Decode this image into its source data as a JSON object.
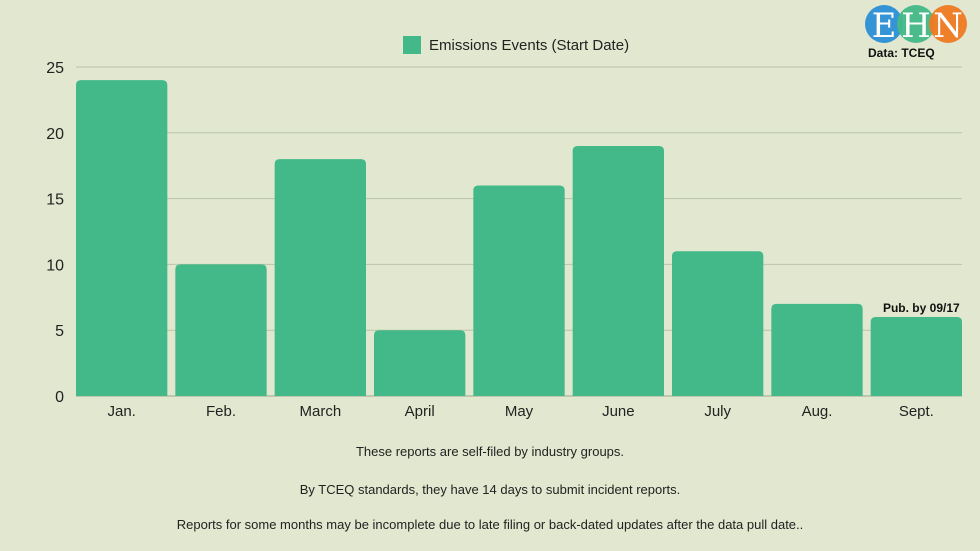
{
  "chart_data": {
    "type": "bar",
    "title": "",
    "categories": [
      "Jan.",
      "Feb.",
      "March",
      "April",
      "May",
      "June",
      "July",
      "Aug.",
      "Sept."
    ],
    "series": [
      {
        "name": "Emissions Events (Start Date)",
        "values": [
          24,
          10,
          18,
          5,
          16,
          19,
          11,
          7,
          6
        ]
      }
    ],
    "ylim": [
      0,
      25
    ],
    "yticks": [
      0,
      5,
      10,
      15,
      20,
      25
    ],
    "xlabel": "",
    "ylabel": "",
    "grid": true,
    "legend_position": "top-center",
    "annotations": [
      {
        "category": "Sept.",
        "text": "Pub. by 09/17"
      }
    ],
    "color": "#43b888"
  },
  "logo": {
    "text": "EHN",
    "colors": [
      "#2b8fd6",
      "#43b888",
      "#ef7a22"
    ]
  },
  "source": "Data: TCEQ",
  "notes": [
    "These reports are self-filed by industry groups.",
    "By TCEQ standards, they have 14 days to submit incident reports.",
    "Reports for some months may be incomplete due to late filing or back-dated updates after the data pull date.."
  ]
}
